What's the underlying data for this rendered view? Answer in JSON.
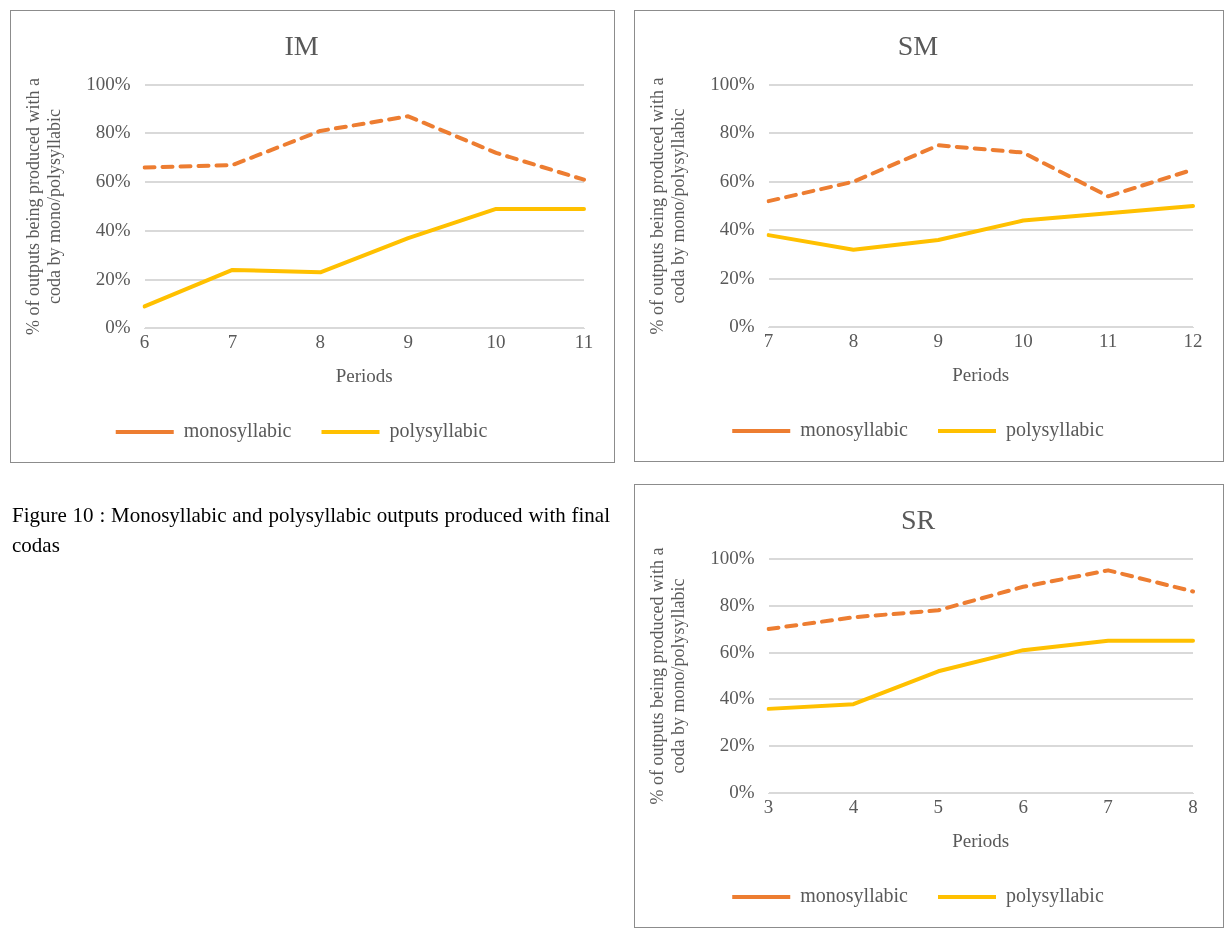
{
  "chart_data": [
    {
      "type": "line",
      "title": "IM",
      "xlabel": "Periods",
      "ylabel": "% of outputs being produced with a coda by mono/polysyllabic",
      "categories": [
        "6",
        "7",
        "8",
        "9",
        "10",
        "11"
      ],
      "series": [
        {
          "name": "monosyllabic",
          "color": "#ed7d31",
          "line_style": "dashed",
          "values": [
            66,
            67,
            81,
            87,
            72,
            61
          ]
        },
        {
          "name": "polysyllabic",
          "color": "#ffc000",
          "line_style": "solid",
          "values": [
            9,
            24,
            23,
            37,
            49,
            49
          ]
        }
      ],
      "ylim": [
        0,
        100
      ],
      "yticks": [
        {
          "value": 0,
          "label": "0%"
        },
        {
          "value": 20,
          "label": "20%"
        },
        {
          "value": 40,
          "label": "40%"
        },
        {
          "value": 60,
          "label": "60%"
        },
        {
          "value": 80,
          "label": "80%"
        },
        {
          "value": 100,
          "label": "100%"
        }
      ],
      "grid": "y",
      "legend": "bottom",
      "marker": "none"
    },
    {
      "type": "line",
      "title": "SM",
      "xlabel": "Periods",
      "ylabel": "% of outputs being produced with a coda by mono/polysyllabic",
      "categories": [
        "7",
        "8",
        "9",
        "10",
        "11",
        "12"
      ],
      "series": [
        {
          "name": "monosyllabic",
          "color": "#ed7d31",
          "line_style": "dashed",
          "values": [
            52,
            60,
            75,
            72,
            54,
            65
          ]
        },
        {
          "name": "polysyllabic",
          "color": "#ffc000",
          "line_style": "solid",
          "values": [
            38,
            32,
            36,
            44,
            47,
            50
          ]
        }
      ],
      "ylim": [
        0,
        100
      ],
      "yticks": [
        {
          "value": 0,
          "label": "0%"
        },
        {
          "value": 20,
          "label": "20%"
        },
        {
          "value": 40,
          "label": "40%"
        },
        {
          "value": 60,
          "label": "60%"
        },
        {
          "value": 80,
          "label": "80%"
        },
        {
          "value": 100,
          "label": "100%"
        }
      ],
      "grid": "y",
      "legend": "bottom",
      "marker": "none"
    },
    {
      "type": "other",
      "annotations": [
        "Figure 10 : Monosyllabic and polysyllabic outputs produced with final codas"
      ]
    },
    {
      "type": "line",
      "title": "SR",
      "xlabel": "Periods",
      "ylabel": "% of outputs being produced with a coda by mono/polysyllabic",
      "categories": [
        "3",
        "4",
        "5",
        "6",
        "7",
        "8"
      ],
      "series": [
        {
          "name": "monosyllabic",
          "color": "#ed7d31",
          "line_style": "dashed",
          "values": [
            70,
            75,
            78,
            88,
            95,
            86
          ]
        },
        {
          "name": "polysyllabic",
          "color": "#ffc000",
          "line_style": "solid",
          "values": [
            36,
            38,
            52,
            61,
            65,
            65
          ]
        }
      ],
      "ylim": [
        0,
        100
      ],
      "yticks": [
        {
          "value": 0,
          "label": "0%"
        },
        {
          "value": 20,
          "label": "20%"
        },
        {
          "value": 40,
          "label": "40%"
        },
        {
          "value": 60,
          "label": "60%"
        },
        {
          "value": 80,
          "label": "80%"
        },
        {
          "value": 100,
          "label": "100%"
        }
      ],
      "grid": "y",
      "legend": "bottom",
      "marker": "none"
    }
  ]
}
